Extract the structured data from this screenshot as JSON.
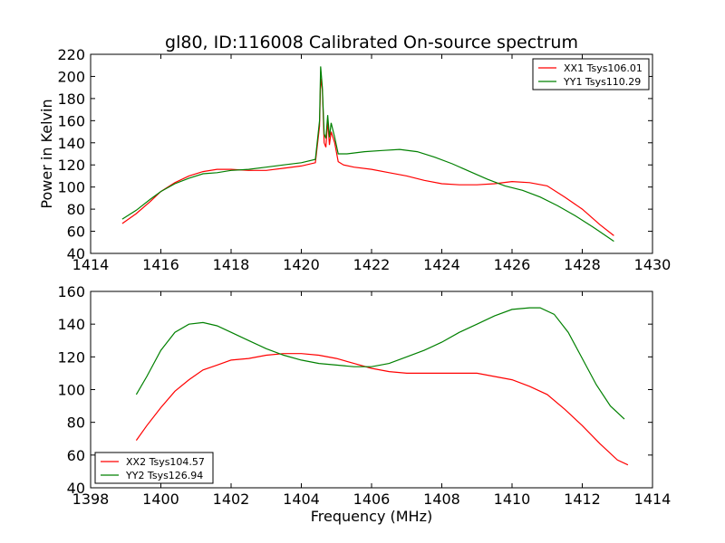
{
  "chart_data": [
    {
      "type": "line",
      "title": "gl80, ID:116008 Calibrated On-source spectrum",
      "xlabel": "",
      "ylabel": "Power in Kelvin",
      "xlim": [
        1414,
        1430
      ],
      "ylim": [
        40,
        220
      ],
      "xticks": [
        "1414",
        "1416",
        "1418",
        "1420",
        "1422",
        "1424",
        "1426",
        "1428",
        "1430"
      ],
      "yticks": [
        "40",
        "60",
        "80",
        "100",
        "120",
        "140",
        "160",
        "180",
        "200",
        "220"
      ],
      "grid": false,
      "legend_position": "top-right",
      "series": [
        {
          "name": "XX1 Tsys106.01",
          "color": "#ff0000",
          "points": [
            [
              1414.9,
              67
            ],
            [
              1415.3,
              76
            ],
            [
              1415.7,
              87
            ],
            [
              1416.0,
              96
            ],
            [
              1416.4,
              104
            ],
            [
              1416.8,
              110
            ],
            [
              1417.2,
              114
            ],
            [
              1417.6,
              116
            ],
            [
              1418.0,
              116
            ],
            [
              1418.5,
              115
            ],
            [
              1419.0,
              115
            ],
            [
              1419.5,
              117
            ],
            [
              1420.0,
              119
            ],
            [
              1420.4,
              122
            ],
            [
              1420.52,
              155
            ],
            [
              1420.55,
              198
            ],
            [
              1420.6,
              188
            ],
            [
              1420.65,
              140
            ],
            [
              1420.7,
              136
            ],
            [
              1420.75,
              160
            ],
            [
              1420.8,
              138
            ],
            [
              1420.85,
              150
            ],
            [
              1420.95,
              140
            ],
            [
              1421.05,
              123
            ],
            [
              1421.2,
              120
            ],
            [
              1421.5,
              118
            ],
            [
              1422.0,
              116
            ],
            [
              1422.5,
              113
            ],
            [
              1423.0,
              110
            ],
            [
              1423.5,
              106
            ],
            [
              1424.0,
              103
            ],
            [
              1424.5,
              102
            ],
            [
              1425.0,
              102
            ],
            [
              1425.5,
              103
            ],
            [
              1426.0,
              105
            ],
            [
              1426.5,
              104
            ],
            [
              1427.0,
              101
            ],
            [
              1427.5,
              91
            ],
            [
              1428.0,
              80
            ],
            [
              1428.5,
              66
            ],
            [
              1428.9,
              56
            ]
          ]
        },
        {
          "name": "YY1 Tsys110.29",
          "color": "#008000",
          "points": [
            [
              1414.9,
              71
            ],
            [
              1415.3,
              79
            ],
            [
              1415.7,
              89
            ],
            [
              1416.0,
              96
            ],
            [
              1416.4,
              103
            ],
            [
              1416.8,
              108
            ],
            [
              1417.2,
              112
            ],
            [
              1417.6,
              113
            ],
            [
              1418.0,
              115
            ],
            [
              1418.5,
              116
            ],
            [
              1419.0,
              118
            ],
            [
              1419.5,
              120
            ],
            [
              1420.0,
              122
            ],
            [
              1420.4,
              125
            ],
            [
              1420.52,
              160
            ],
            [
              1420.55,
              209
            ],
            [
              1420.6,
              190
            ],
            [
              1420.65,
              148
            ],
            [
              1420.7,
              144
            ],
            [
              1420.75,
              165
            ],
            [
              1420.8,
              145
            ],
            [
              1420.85,
              158
            ],
            [
              1420.95,
              145
            ],
            [
              1421.05,
              130
            ],
            [
              1421.3,
              130
            ],
            [
              1421.8,
              132
            ],
            [
              1422.3,
              133
            ],
            [
              1422.8,
              134
            ],
            [
              1423.3,
              132
            ],
            [
              1423.8,
              127
            ],
            [
              1424.3,
              121
            ],
            [
              1424.8,
              114
            ],
            [
              1425.3,
              107
            ],
            [
              1425.8,
              101
            ],
            [
              1426.3,
              97
            ],
            [
              1426.8,
              91
            ],
            [
              1427.3,
              83
            ],
            [
              1427.8,
              74
            ],
            [
              1428.3,
              64
            ],
            [
              1428.9,
              51
            ]
          ]
        }
      ]
    },
    {
      "type": "line",
      "title": "",
      "xlabel": "Frequency (MHz)",
      "ylabel": "",
      "xlim": [
        1398,
        1414
      ],
      "ylim": [
        40,
        160
      ],
      "xticks": [
        "1398",
        "1400",
        "1402",
        "1404",
        "1406",
        "1408",
        "1410",
        "1412",
        "1414"
      ],
      "yticks": [
        "40",
        "60",
        "80",
        "100",
        "120",
        "140",
        "160"
      ],
      "grid": false,
      "legend_position": "bottom-left",
      "series": [
        {
          "name": "XX2 Tsys104.57",
          "color": "#ff0000",
          "points": [
            [
              1399.3,
              69
            ],
            [
              1399.6,
              78
            ],
            [
              1400.0,
              89
            ],
            [
              1400.4,
              99
            ],
            [
              1400.8,
              106
            ],
            [
              1401.2,
              112
            ],
            [
              1401.6,
              115
            ],
            [
              1402.0,
              118
            ],
            [
              1402.5,
              119
            ],
            [
              1403.0,
              121
            ],
            [
              1403.5,
              122
            ],
            [
              1404.0,
              122
            ],
            [
              1404.5,
              121
            ],
            [
              1405.0,
              119
            ],
            [
              1405.5,
              116
            ],
            [
              1406.0,
              113
            ],
            [
              1406.5,
              111
            ],
            [
              1407.0,
              110
            ],
            [
              1407.5,
              110
            ],
            [
              1408.0,
              110
            ],
            [
              1408.5,
              110
            ],
            [
              1409.0,
              110
            ],
            [
              1409.5,
              108
            ],
            [
              1410.0,
              106
            ],
            [
              1410.5,
              102
            ],
            [
              1411.0,
              97
            ],
            [
              1411.5,
              88
            ],
            [
              1412.0,
              78
            ],
            [
              1412.5,
              67
            ],
            [
              1413.0,
              57
            ],
            [
              1413.3,
              54
            ]
          ]
        },
        {
          "name": "YY2 Tsys126.94",
          "color": "#008000",
          "points": [
            [
              1399.3,
              97
            ],
            [
              1399.6,
              108
            ],
            [
              1400.0,
              124
            ],
            [
              1400.4,
              135
            ],
            [
              1400.8,
              140
            ],
            [
              1401.2,
              141
            ],
            [
              1401.6,
              139
            ],
            [
              1402.0,
              135
            ],
            [
              1402.5,
              130
            ],
            [
              1403.0,
              125
            ],
            [
              1403.5,
              121
            ],
            [
              1404.0,
              118
            ],
            [
              1404.5,
              116
            ],
            [
              1405.0,
              115
            ],
            [
              1405.5,
              114
            ],
            [
              1406.0,
              114
            ],
            [
              1406.5,
              116
            ],
            [
              1407.0,
              120
            ],
            [
              1407.5,
              124
            ],
            [
              1408.0,
              129
            ],
            [
              1408.5,
              135
            ],
            [
              1409.0,
              140
            ],
            [
              1409.5,
              145
            ],
            [
              1410.0,
              149
            ],
            [
              1410.5,
              150
            ],
            [
              1410.8,
              150
            ],
            [
              1411.2,
              146
            ],
            [
              1411.6,
              135
            ],
            [
              1412.0,
              119
            ],
            [
              1412.4,
              103
            ],
            [
              1412.8,
              90
            ],
            [
              1413.2,
              82
            ]
          ]
        }
      ]
    }
  ]
}
